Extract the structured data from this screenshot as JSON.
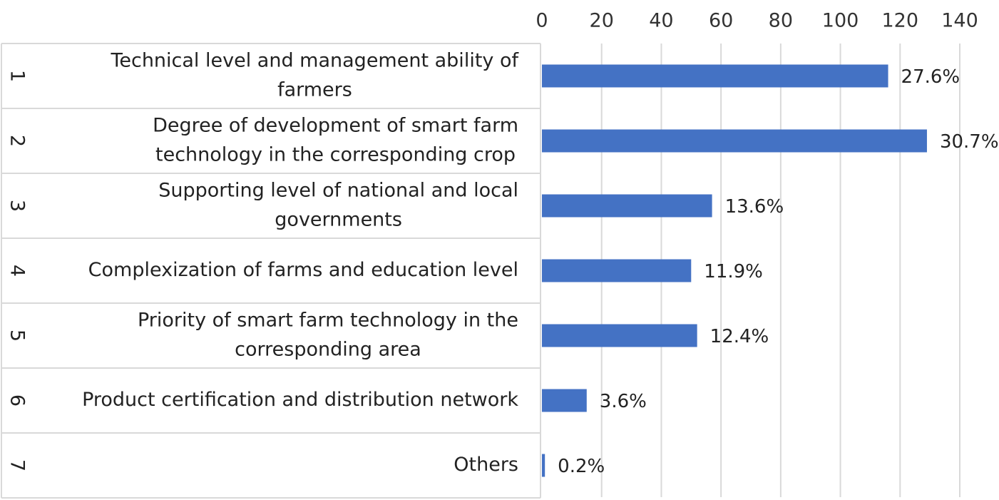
{
  "chart_data": {
    "type": "bar",
    "orientation": "horizontal",
    "title": "",
    "xlabel": "",
    "ylabel": "",
    "xlim": [
      0,
      140
    ],
    "xticks": [
      0,
      20,
      40,
      60,
      80,
      100,
      120,
      140
    ],
    "x_axis_position": "top",
    "grid": true,
    "legend": "none",
    "bar_color": "#4472C4",
    "grid_color": "#D9D9D9",
    "categories": [
      {
        "number": "1",
        "lines": [
          "Technical level and management ability of",
          "farmers"
        ]
      },
      {
        "number": "2",
        "lines": [
          "Degree of development of smart farm",
          "technology in the corresponding crop"
        ]
      },
      {
        "number": "3",
        "lines": [
          "Supporting level of national and local",
          "governments"
        ]
      },
      {
        "number": "4",
        "lines": [
          "Complexization of farms and education level"
        ]
      },
      {
        "number": "5",
        "lines": [
          "Priority of smart farm technology in the",
          "corresponding area"
        ]
      },
      {
        "number": "6",
        "lines": [
          "Product certification and distribution network"
        ]
      },
      {
        "number": "7",
        "lines": [
          "Others"
        ]
      }
    ],
    "values": [
      116,
      129,
      57,
      50,
      52,
      15,
      1
    ],
    "data_labels": [
      "27.6%",
      "30.7%",
      "13.6%",
      "11.9%",
      "12.4%",
      "3.6%",
      "0.2%"
    ]
  }
}
